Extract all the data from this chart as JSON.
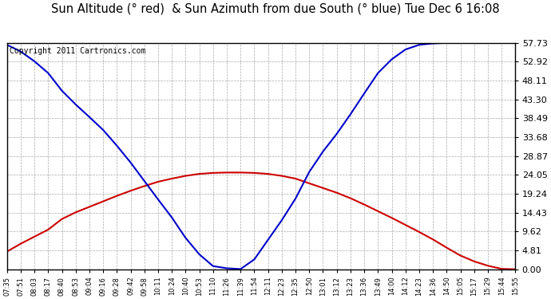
{
  "title": "Sun Altitude (° red)  & Sun Azimuth from due South (° blue) Tue Dec 6 16:08",
  "copyright_text": "Copyright 2011 Cartronics.com",
  "yticks": [
    0.0,
    4.81,
    9.62,
    14.43,
    19.24,
    24.05,
    28.87,
    33.68,
    38.49,
    43.3,
    48.11,
    52.92,
    57.73
  ],
  "ymin": 0.0,
  "ymax": 57.73,
  "xtick_labels": [
    "07:35",
    "07:51",
    "08:03",
    "08:17",
    "08:40",
    "08:53",
    "09:04",
    "09:16",
    "09:28",
    "09:42",
    "09:58",
    "10:11",
    "10:24",
    "10:40",
    "10:53",
    "11:10",
    "11:26",
    "11:39",
    "11:54",
    "12:11",
    "12:23",
    "12:35",
    "12:50",
    "13:01",
    "13:12",
    "13:23",
    "13:36",
    "13:49",
    "14:00",
    "14:12",
    "14:23",
    "14:36",
    "14:50",
    "15:05",
    "15:17",
    "15:29",
    "15:44",
    "15:55"
  ],
  "altitude_values": [
    4.5,
    6.5,
    8.3,
    10.1,
    12.8,
    14.5,
    15.9,
    17.3,
    18.7,
    20.0,
    21.2,
    22.3,
    23.1,
    23.8,
    24.3,
    24.55,
    24.65,
    24.65,
    24.55,
    24.3,
    23.8,
    23.1,
    21.9,
    20.7,
    19.5,
    18.1,
    16.5,
    14.8,
    13.1,
    11.3,
    9.5,
    7.6,
    5.5,
    3.5,
    2.0,
    0.9,
    0.1,
    0.0
  ],
  "azimuth_values": [
    57.2,
    55.5,
    53.0,
    50.0,
    45.5,
    42.0,
    38.8,
    35.5,
    31.5,
    27.2,
    22.5,
    17.8,
    13.2,
    8.0,
    3.8,
    0.8,
    0.25,
    0.05,
    2.5,
    7.5,
    12.5,
    18.0,
    24.8,
    30.0,
    34.5,
    39.5,
    44.8,
    50.0,
    53.5,
    56.0,
    57.2,
    57.55,
    57.7,
    57.73,
    57.73,
    57.73,
    57.73,
    57.73
  ],
  "altitude_color": "#cc0000",
  "azimuth_color": "#0000cc",
  "bg_color": "#ffffff",
  "grid_color": "#aaaaaa",
  "title_fontsize": 10.5,
  "copyright_fontsize": 7.0
}
